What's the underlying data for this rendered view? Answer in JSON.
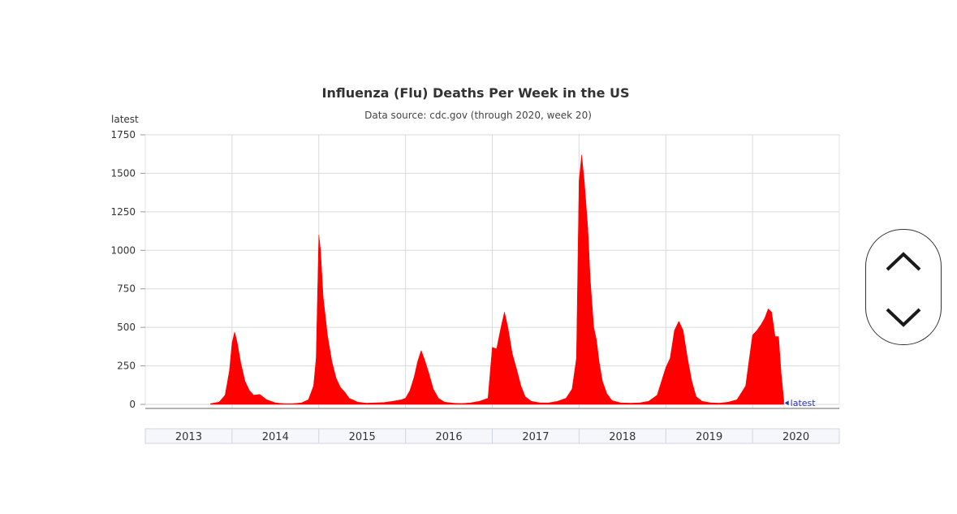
{
  "chart_data": {
    "type": "area",
    "title": "Influenza (Flu) Deaths Per Week in the US",
    "subtitle": "Data source: cdc.gov (through 2020, week 20)",
    "ylabel": "latest",
    "ylim": [
      0,
      1750
    ],
    "yticks": [
      "0",
      "250",
      "500",
      "750",
      "1000",
      "1250",
      "1500",
      "1750"
    ],
    "grid": true,
    "area_color": "#ff0000",
    "x_years": [
      "2013",
      "2014",
      "2015",
      "2016",
      "2017",
      "2018",
      "2019",
      "2020"
    ],
    "series": [
      {
        "points": [
          [
            2013.75,
            5
          ],
          [
            2013.85,
            15
          ],
          [
            2013.92,
            60
          ],
          [
            2013.97,
            220
          ],
          [
            2014.0,
            400
          ],
          [
            2014.03,
            470
          ],
          [
            2014.06,
            400
          ],
          [
            2014.1,
            270
          ],
          [
            2014.15,
            150
          ],
          [
            2014.2,
            90
          ],
          [
            2014.25,
            60
          ],
          [
            2014.32,
            65
          ],
          [
            2014.4,
            30
          ],
          [
            2014.5,
            10
          ],
          [
            2014.6,
            5
          ],
          [
            2014.7,
            5
          ],
          [
            2014.8,
            10
          ],
          [
            2014.88,
            30
          ],
          [
            2014.94,
            120
          ],
          [
            2014.97,
            300
          ],
          [
            2015.0,
            1100
          ],
          [
            2015.02,
            1000
          ],
          [
            2015.05,
            700
          ],
          [
            2015.1,
            450
          ],
          [
            2015.15,
            280
          ],
          [
            2015.2,
            170
          ],
          [
            2015.25,
            110
          ],
          [
            2015.3,
            80
          ],
          [
            2015.35,
            40
          ],
          [
            2015.45,
            15
          ],
          [
            2015.55,
            8
          ],
          [
            2015.65,
            10
          ],
          [
            2015.75,
            12
          ],
          [
            2015.85,
            20
          ],
          [
            2015.95,
            30
          ],
          [
            2016.0,
            40
          ],
          [
            2016.05,
            90
          ],
          [
            2016.1,
            180
          ],
          [
            2016.14,
            280
          ],
          [
            2016.18,
            350
          ],
          [
            2016.22,
            290
          ],
          [
            2016.27,
            200
          ],
          [
            2016.32,
            100
          ],
          [
            2016.38,
            40
          ],
          [
            2016.45,
            15
          ],
          [
            2016.55,
            8
          ],
          [
            2016.65,
            6
          ],
          [
            2016.75,
            10
          ],
          [
            2016.85,
            20
          ],
          [
            2016.95,
            40
          ],
          [
            2017.0,
            370
          ],
          [
            2017.05,
            360
          ],
          [
            2017.1,
            500
          ],
          [
            2017.14,
            600
          ],
          [
            2017.18,
            500
          ],
          [
            2017.23,
            330
          ],
          [
            2017.28,
            230
          ],
          [
            2017.33,
            120
          ],
          [
            2017.38,
            50
          ],
          [
            2017.45,
            20
          ],
          [
            2017.55,
            10
          ],
          [
            2017.65,
            10
          ],
          [
            2017.75,
            20
          ],
          [
            2017.85,
            40
          ],
          [
            2017.92,
            100
          ],
          [
            2017.97,
            300
          ],
          [
            2018.0,
            1450
          ],
          [
            2018.03,
            1620
          ],
          [
            2018.06,
            1450
          ],
          [
            2018.1,
            1150
          ],
          [
            2018.13,
            800
          ],
          [
            2018.17,
            500
          ],
          [
            2018.2,
            420
          ],
          [
            2018.23,
            280
          ],
          [
            2018.27,
            150
          ],
          [
            2018.32,
            70
          ],
          [
            2018.38,
            25
          ],
          [
            2018.48,
            10
          ],
          [
            2018.6,
            8
          ],
          [
            2018.7,
            10
          ],
          [
            2018.8,
            20
          ],
          [
            2018.9,
            60
          ],
          [
            2019.0,
            240
          ],
          [
            2019.05,
            300
          ],
          [
            2019.1,
            480
          ],
          [
            2019.15,
            540
          ],
          [
            2019.2,
            480
          ],
          [
            2019.25,
            300
          ],
          [
            2019.3,
            150
          ],
          [
            2019.35,
            50
          ],
          [
            2019.42,
            20
          ],
          [
            2019.52,
            10
          ],
          [
            2019.62,
            8
          ],
          [
            2019.72,
            15
          ],
          [
            2019.82,
            30
          ],
          [
            2019.92,
            120
          ],
          [
            2020.0,
            450
          ],
          [
            2020.05,
            480
          ],
          [
            2020.1,
            520
          ],
          [
            2020.14,
            560
          ],
          [
            2020.18,
            620
          ],
          [
            2020.22,
            600
          ],
          [
            2020.26,
            440
          ],
          [
            2020.3,
            440
          ],
          [
            2020.33,
            200
          ],
          [
            2020.36,
            30
          ]
        ]
      }
    ],
    "latest_marker": {
      "x": 2020.37,
      "y": 20,
      "label": "latest"
    }
  },
  "controls": {
    "scroll_up_icon": "chevron-up-icon",
    "scroll_down_icon": "chevron-down-icon"
  }
}
